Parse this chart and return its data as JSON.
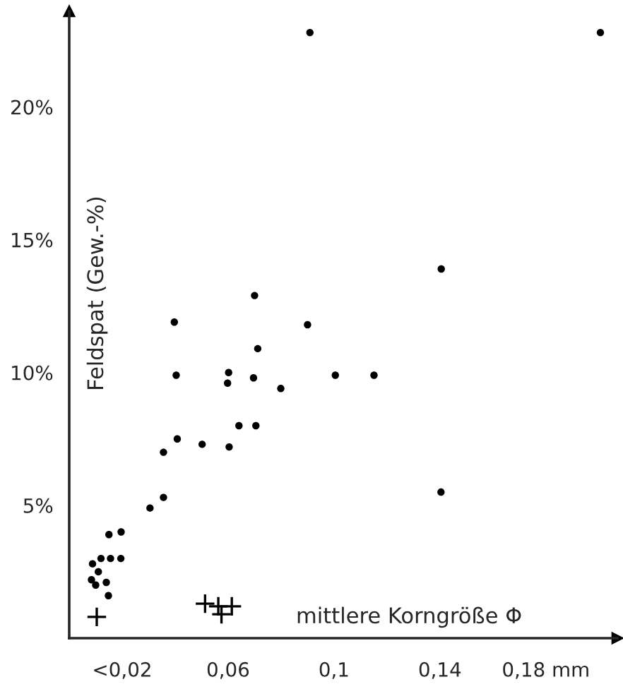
{
  "chart_data": {
    "type": "scatter",
    "xlabel": "mittlere Korngröße Φ",
    "ylabel": "Feldspat (Gew.-%)",
    "xlim": [
      0,
      0.207
    ],
    "ylim": [
      0,
      23.6
    ],
    "xticks": [
      {
        "value": 0.02,
        "label": "<0,02"
      },
      {
        "value": 0.06,
        "label": "0,06"
      },
      {
        "value": 0.1,
        "label": "0,1"
      },
      {
        "value": 0.14,
        "label": "0,14"
      },
      {
        "value": 0.18,
        "label": "0,18 mm"
      }
    ],
    "yticks": [
      {
        "value": 5,
        "label": "5%"
      },
      {
        "value": 10,
        "label": "10%"
      },
      {
        "value": 15,
        "label": "15%"
      },
      {
        "value": 20,
        "label": "20%"
      }
    ],
    "grid": false,
    "legend": false,
    "series": [
      {
        "color": "#000000",
        "marker": "circle",
        "x": [
          0.0909,
          0.2006,
          0.1405,
          0.07,
          0.0397,
          0.09,
          0.0712,
          0.0404,
          0.0602,
          0.0598,
          0.0696,
          0.0799,
          0.0408,
          0.0356,
          0.0502,
          0.0604,
          0.0641,
          0.0705,
          0.0356,
          0.0305,
          0.015,
          0.0196,
          0.012,
          0.0156,
          0.0195,
          0.0088,
          0.011,
          0.0084,
          0.01,
          0.014,
          0.0148,
          0.1005,
          0.1151,
          0.1404
        ],
        "values": [
          22.8,
          22.8,
          13.9,
          12.9,
          11.9,
          11.8,
          10.9,
          9.9,
          10.0,
          9.6,
          9.8,
          9.4,
          7.5,
          7.0,
          7.3,
          7.2,
          8.0,
          8.0,
          5.3,
          4.9,
          3.9,
          4.0,
          3.0,
          3.0,
          3.0,
          2.8,
          2.5,
          2.2,
          2.0,
          2.1,
          1.6,
          9.9,
          9.9,
          5.5
        ]
      },
      {
        "color": "#000000",
        "marker": "cross",
        "x": [
          0.0104,
          0.0513,
          0.0563,
          0.0575,
          0.0614
        ],
        "values": [
          0.8,
          1.3,
          1.2,
          0.9,
          1.2
        ]
      }
    ]
  }
}
